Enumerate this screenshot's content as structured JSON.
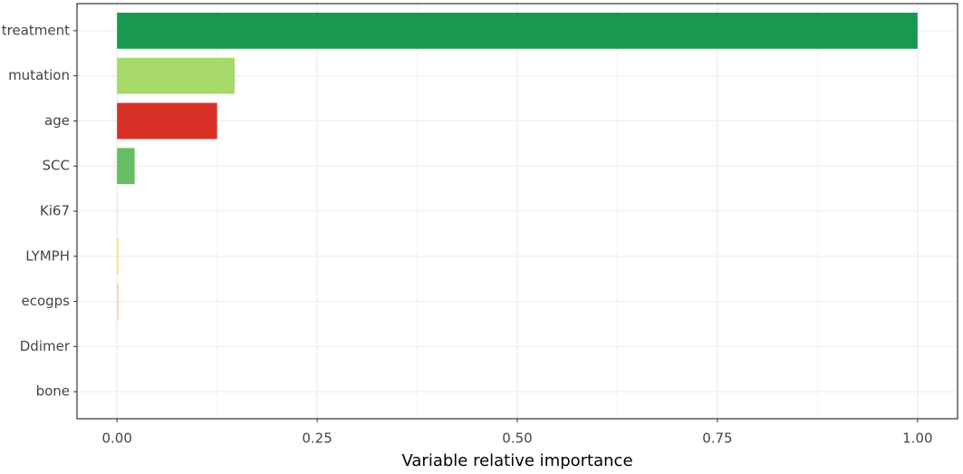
{
  "chart_data": {
    "type": "hbar",
    "xlabel": "Variable relative importance",
    "categories": [
      "treatment",
      "mutation",
      "age",
      "SCC",
      "Ki67",
      "LYMPH",
      "ecogps",
      "Ddimer",
      "bone"
    ],
    "values": [
      1.0,
      0.147,
      0.125,
      0.022,
      0.001,
      0.002,
      0.002,
      0,
      0
    ],
    "colors": [
      "#1a9850",
      "#a6d96a",
      "#d73027",
      "#66bd63",
      "#fee08b",
      "#fee08b",
      "#fdd49e",
      "#fdae61",
      "#f46d43"
    ],
    "xlim": [
      -0.05,
      1.05
    ],
    "xticks": [
      {
        "value": 0,
        "label": "0.00"
      },
      {
        "value": 0.25,
        "label": "0.25"
      },
      {
        "value": 0.5,
        "label": "0.50"
      },
      {
        "value": 0.75,
        "label": "0.75"
      },
      {
        "value": 1,
        "label": "1.00"
      }
    ],
    "minor_xticks": [
      0.125,
      0.375,
      0.625,
      0.875
    ],
    "grid": true
  }
}
